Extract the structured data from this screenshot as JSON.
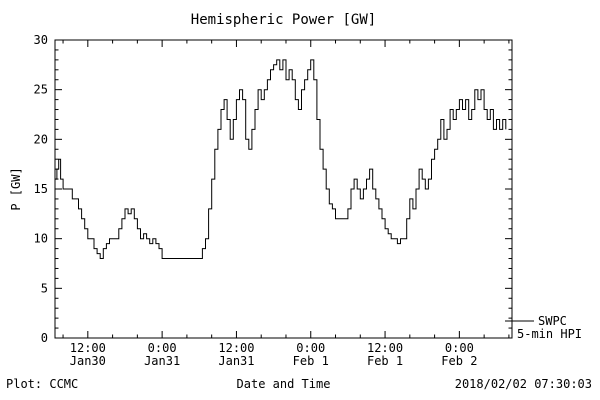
{
  "title": "Hemispheric Power [GW]",
  "footer": {
    "credit": "Plot: CCMC",
    "xlabel": "Date and Time",
    "timestamp": "2018/02/02 07:30:03"
  },
  "legend": {
    "line1": "SWPC",
    "line2": "5-min HPI"
  },
  "colors": {
    "line": "#000000",
    "background": "#ffffff",
    "axis": "#000000"
  },
  "chart_data": {
    "type": "line",
    "title": "Hemispheric Power [GW]",
    "xlabel": "Date and Time",
    "ylabel": "P [GW]",
    "x_unit": "hours since 2018-01-30 00:00 UT",
    "xlim": [
      6.7,
      80.5
    ],
    "ylim": [
      0,
      30
    ],
    "yticks": [
      0,
      5,
      10,
      15,
      20,
      25,
      30
    ],
    "xticks": [
      {
        "hour": 12,
        "time": "12:00",
        "date": "Jan30"
      },
      {
        "hour": 24,
        "time": "0:00",
        "date": "Jan31"
      },
      {
        "hour": 36,
        "time": "12:00",
        "date": "Jan31"
      },
      {
        "hour": 48,
        "time": "0:00",
        "date": "Feb 1"
      },
      {
        "hour": 60,
        "time": "12:00",
        "date": "Feb 1"
      },
      {
        "hour": 72,
        "time": "0:00",
        "date": "Feb 2"
      }
    ],
    "grid": false,
    "legend_position": "right-outside",
    "series": [
      {
        "name": "SWPC 5-min HPI",
        "x": [
          6.7,
          7.0,
          7.3,
          7.6,
          8.0,
          8.5,
          9.0,
          9.5,
          10.0,
          10.5,
          11.0,
          11.5,
          12.0,
          12.5,
          13.0,
          13.5,
          14.0,
          14.5,
          15.0,
          15.5,
          16.0,
          16.5,
          17.0,
          17.5,
          18.0,
          18.5,
          19.0,
          19.5,
          20.0,
          20.5,
          21.0,
          21.5,
          22.0,
          22.5,
          23.0,
          23.5,
          24.0,
          25.0,
          26.0,
          27.0,
          28.0,
          29.0,
          30.0,
          30.5,
          31.0,
          31.5,
          32.0,
          32.5,
          33.0,
          33.5,
          34.0,
          34.5,
          35.0,
          35.5,
          36.0,
          36.5,
          37.0,
          37.5,
          38.0,
          38.5,
          39.0,
          39.5,
          40.0,
          40.5,
          41.0,
          41.5,
          42.0,
          42.5,
          43.0,
          43.5,
          44.0,
          44.5,
          45.0,
          45.5,
          46.0,
          46.5,
          47.0,
          47.5,
          48.0,
          48.5,
          49.0,
          49.5,
          50.0,
          50.5,
          51.0,
          51.5,
          52.0,
          52.5,
          53.0,
          54.0,
          54.5,
          55.0,
          55.5,
          56.0,
          56.5,
          57.0,
          57.5,
          58.0,
          58.5,
          59.0,
          59.5,
          60.0,
          60.5,
          61.0,
          61.5,
          62.0,
          62.5,
          63.0,
          63.5,
          64.0,
          64.5,
          65.0,
          65.5,
          66.0,
          66.5,
          67.0,
          67.5,
          68.0,
          68.5,
          69.0,
          69.5,
          70.0,
          70.5,
          71.0,
          71.5,
          72.0,
          72.5,
          73.0,
          73.5,
          74.0,
          74.5,
          75.0,
          75.5,
          76.0,
          76.5,
          77.0,
          77.5,
          78.0,
          78.5,
          79.0,
          79.5
        ],
        "y": [
          16,
          17,
          18,
          16,
          15,
          15,
          15,
          14,
          14,
          13,
          12,
          11,
          10,
          10,
          9,
          8.5,
          8,
          9,
          9.5,
          10,
          10,
          10,
          11,
          12,
          13,
          12.5,
          13,
          12,
          11,
          10,
          10.5,
          10,
          9.5,
          10,
          9.5,
          9,
          8,
          8,
          8,
          8,
          8,
          8,
          8,
          9,
          10,
          13,
          16,
          19,
          21,
          23,
          24,
          22,
          20,
          22,
          24,
          25,
          24,
          20,
          19,
          21,
          23,
          25,
          24,
          25,
          26,
          27,
          27.5,
          28,
          27,
          28,
          26,
          27,
          26,
          24,
          23,
          25,
          26,
          27,
          28,
          26,
          22,
          19,
          17,
          15,
          13.5,
          13,
          12,
          12,
          12,
          13,
          15,
          16,
          15,
          14,
          15,
          16,
          17,
          15,
          14,
          13,
          12,
          11,
          10.5,
          10,
          10,
          9.5,
          10,
          10,
          12,
          14,
          13,
          15,
          17,
          16,
          15,
          16,
          18,
          19,
          20,
          22,
          20,
          21,
          23,
          22,
          23,
          24,
          23,
          24,
          22,
          23,
          25,
          24,
          25,
          23,
          22,
          23,
          21,
          22,
          21,
          22,
          21
        ]
      }
    ]
  }
}
